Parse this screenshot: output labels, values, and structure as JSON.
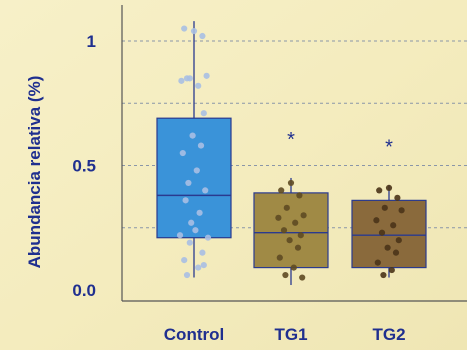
{
  "chart_data": {
    "type": "box",
    "ylabel": "Abundancia relativa (%)",
    "y_ticks": [
      {
        "value": 0.0,
        "label": "0.0"
      },
      {
        "value": 0.5,
        "label": "0.5"
      },
      {
        "value": 1.0,
        "label": "1"
      }
    ],
    "gridlines": [
      0.25,
      0.5,
      0.75,
      1.0
    ],
    "grid": true,
    "ylim": [
      -0.05,
      1.1
    ],
    "categories": [
      "Control",
      "TG1",
      "TG2"
    ],
    "groups": [
      {
        "name": "Control",
        "color": "#3a93d9",
        "point_color": "#a9bfe3",
        "whisker_low": 0.05,
        "q1": 0.21,
        "median": 0.38,
        "q3": 0.69,
        "whisker_high": 1.08,
        "significance": "",
        "points": [
          1.04,
          1.05,
          1.02,
          0.85,
          0.86,
          0.84,
          0.82,
          0.85,
          0.71,
          0.62,
          0.58,
          0.55,
          0.48,
          0.43,
          0.4,
          0.36,
          0.31,
          0.27,
          0.24,
          0.22,
          0.21,
          0.19,
          0.15,
          0.12,
          0.09,
          0.06,
          0.1
        ]
      },
      {
        "name": "TG1",
        "color": "#a08a45",
        "point_color": "#5e4a22",
        "whisker_low": 0.02,
        "q1": 0.09,
        "median": 0.23,
        "q3": 0.39,
        "whisker_high": 0.45,
        "significance": "*",
        "points": [
          0.43,
          0.4,
          0.38,
          0.33,
          0.3,
          0.29,
          0.27,
          0.24,
          0.22,
          0.2,
          0.17,
          0.13,
          0.09,
          0.06,
          0.05
        ]
      },
      {
        "name": "TG2",
        "color": "#8a6a3c",
        "point_color": "#4a3418",
        "whisker_low": 0.05,
        "q1": 0.09,
        "median": 0.22,
        "q3": 0.36,
        "whisker_high": 0.42,
        "significance": "*",
        "points": [
          0.41,
          0.4,
          0.37,
          0.33,
          0.32,
          0.28,
          0.26,
          0.23,
          0.2,
          0.17,
          0.15,
          0.11,
          0.08,
          0.06
        ]
      }
    ],
    "colors": {
      "text": "#1f2f8f",
      "axis": "#555555",
      "grid": "#8a96a8",
      "box_edge": "#2a3a8f"
    }
  }
}
